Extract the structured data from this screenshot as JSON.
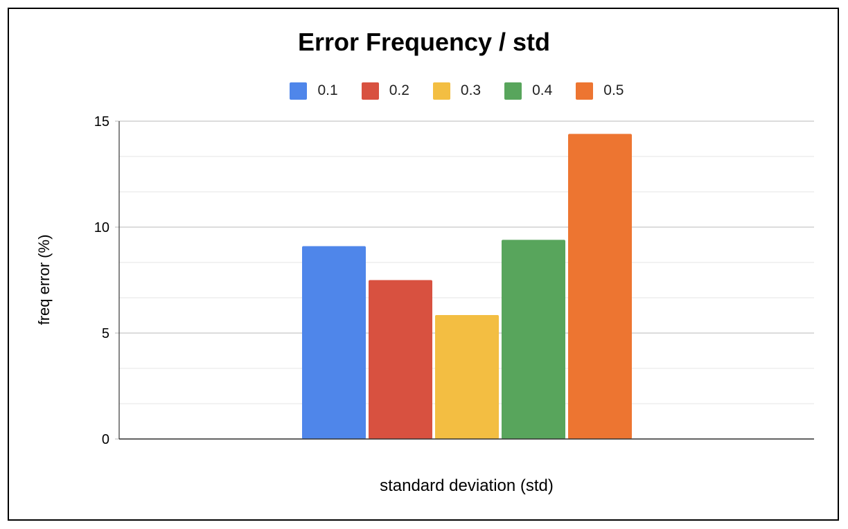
{
  "chart_data": {
    "type": "bar",
    "title": "Error Frequency / std",
    "xlabel": "standard deviation (std)",
    "ylabel": "freq error (%)",
    "ylim": [
      0,
      15
    ],
    "yticks": [
      "0",
      "5",
      "10",
      "15"
    ],
    "grid": true,
    "legend_position": "top",
    "series": [
      {
        "name": "0.1",
        "value": 9.1,
        "color": "#4f86ea"
      },
      {
        "name": "0.2",
        "value": 7.5,
        "color": "#d85140"
      },
      {
        "name": "0.3",
        "value": 5.85,
        "color": "#f3be42"
      },
      {
        "name": "0.4",
        "value": 9.4,
        "color": "#58a55c"
      },
      {
        "name": "0.5",
        "value": 14.4,
        "color": "#ed7531"
      }
    ]
  }
}
